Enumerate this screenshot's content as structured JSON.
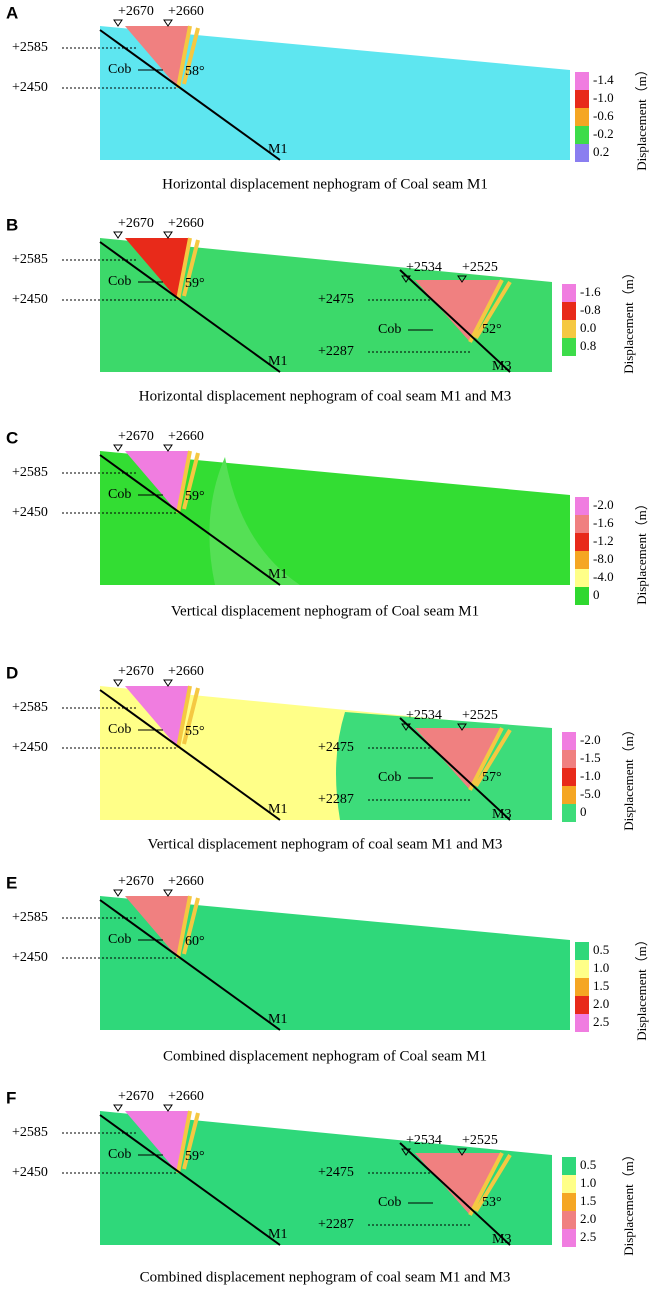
{
  "panels": [
    {
      "letter": "A",
      "caption": "Horizontal displacement nephogram of Coal seam M1",
      "seams": [
        {
          "name": "M1",
          "top_labels": [
            "+2670",
            "+2660"
          ],
          "left_labels": [
            "+2585",
            "+2450"
          ],
          "cob": "Cob",
          "angle": "58°"
        }
      ],
      "legend": {
        "title": "Displacement（m）",
        "items": [
          {
            "label": "-1.4",
            "color": "#f07de0"
          },
          {
            "label": "-1.0",
            "color": "#e82a1a"
          },
          {
            "label": "-0.6",
            "color": "#f5a623"
          },
          {
            "label": "-0.2",
            "color": "#3ddc4a"
          },
          {
            "label": "0.2",
            "color": "#8a7ef0"
          }
        ]
      }
    },
    {
      "letter": "B",
      "caption": "Horizontal displacement nephogram of coal seam M1 and M3",
      "seams": [
        {
          "name": "M1",
          "top_labels": [
            "+2670",
            "+2660"
          ],
          "left_labels": [
            "+2585",
            "+2450"
          ],
          "cob": "Cob",
          "angle": "59°"
        },
        {
          "name": "M3",
          "top_labels": [
            "+2534",
            "+2525"
          ],
          "left_labels": [
            "+2475",
            "+2287"
          ],
          "cob": "Cob",
          "angle": "52°"
        }
      ],
      "legend": {
        "title": "Displacement（m）",
        "items": [
          {
            "label": "-1.6",
            "color": "#f07de0"
          },
          {
            "label": "-0.8",
            "color": "#e82a1a"
          },
          {
            "label": "0.0",
            "color": "#f5c842"
          },
          {
            "label": "0.8",
            "color": "#3ddc4a"
          }
        ]
      }
    },
    {
      "letter": "C",
      "caption": "Vertical displacement nephogram of Coal seam M1",
      "seams": [
        {
          "name": "M1",
          "top_labels": [
            "+2670",
            "+2660"
          ],
          "left_labels": [
            "+2585",
            "+2450"
          ],
          "cob": "Cob",
          "angle": "59°"
        }
      ],
      "legend": {
        "title": "Displacement（m）",
        "items": [
          {
            "label": "-2.0",
            "color": "#f07de0"
          },
          {
            "label": "-1.6",
            "color": "#f08080"
          },
          {
            "label": "-1.2",
            "color": "#e82a1a"
          },
          {
            "label": "-8.0",
            "color": "#f5a623"
          },
          {
            "label": "-4.0",
            "color": "#ffff88"
          },
          {
            "label": "0",
            "color": "#2fd82f"
          }
        ]
      }
    },
    {
      "letter": "D",
      "caption": "Vertical displacement nephogram of coal seam M1 and M3",
      "seams": [
        {
          "name": "M1",
          "top_labels": [
            "+2670",
            "+2660"
          ],
          "left_labels": [
            "+2585",
            "+2450"
          ],
          "cob": "Cob",
          "angle": "55°"
        },
        {
          "name": "M3",
          "top_labels": [
            "+2534",
            "+2525"
          ],
          "left_labels": [
            "+2475",
            "+2287"
          ],
          "cob": "Cob",
          "angle": "57°"
        }
      ],
      "legend": {
        "title": "Displacement（m）",
        "items": [
          {
            "label": "-2.0",
            "color": "#f07de0"
          },
          {
            "label": "-1.5",
            "color": "#f08080"
          },
          {
            "label": "-1.0",
            "color": "#e82a1a"
          },
          {
            "label": "-5.0",
            "color": "#f5a623"
          },
          {
            "label": "0",
            "color": "#3ddc7a"
          }
        ]
      }
    },
    {
      "letter": "E",
      "caption": "Combined displacement nephogram of Coal seam M1",
      "seams": [
        {
          "name": "M1",
          "top_labels": [
            "+2670",
            "+2660"
          ],
          "left_labels": [
            "+2585",
            "+2450"
          ],
          "cob": "Cob",
          "angle": "60°"
        }
      ],
      "legend": {
        "title": "Displacement（m）",
        "items": [
          {
            "label": "0.5",
            "color": "#2fd87a"
          },
          {
            "label": "1.0",
            "color": "#ffff88"
          },
          {
            "label": "1.5",
            "color": "#f5a623"
          },
          {
            "label": "2.0",
            "color": "#e82a1a"
          },
          {
            "label": "2.5",
            "color": "#f07de0"
          }
        ]
      }
    },
    {
      "letter": "F",
      "caption": "Combined displacement nephogram of coal seam M1 and M3",
      "seams": [
        {
          "name": "M1",
          "top_labels": [
            "+2670",
            "+2660"
          ],
          "left_labels": [
            "+2585",
            "+2450"
          ],
          "cob": "Cob",
          "angle": "59°"
        },
        {
          "name": "M3",
          "top_labels": [
            "+2534",
            "+2525"
          ],
          "left_labels": [
            "+2475",
            "+2287"
          ],
          "cob": "Cob",
          "angle": "53°"
        }
      ],
      "legend": {
        "title": "Displacement（m）",
        "items": [
          {
            "label": "0.5",
            "color": "#2fd87a"
          },
          {
            "label": "1.0",
            "color": "#ffff88"
          },
          {
            "label": "1.5",
            "color": "#f5a623"
          },
          {
            "label": "2.0",
            "color": "#f08080"
          },
          {
            "label": "2.5",
            "color": "#f07de0"
          }
        ]
      }
    }
  ]
}
